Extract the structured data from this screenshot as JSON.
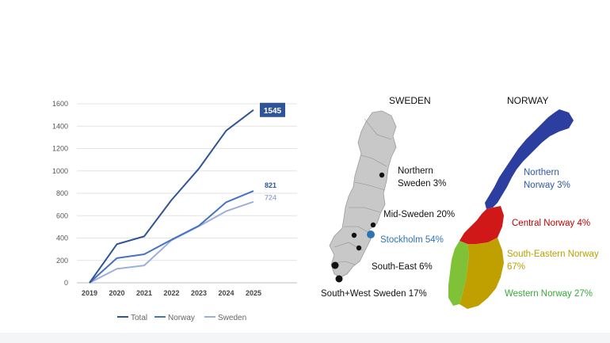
{
  "chart_data": {
    "type": "line",
    "x": [
      2019,
      2020,
      2021,
      2022,
      2023,
      2024,
      2025
    ],
    "ylim": [
      0,
      1600
    ],
    "yticks": [
      0,
      200,
      400,
      600,
      800,
      1000,
      1200,
      1400,
      1600
    ],
    "grid": true,
    "legend_position": "bottom",
    "series": [
      {
        "name": "Total",
        "color": "#2f5597",
        "values": [
          0,
          345,
          415,
          740,
          1020,
          1360,
          1545
        ]
      },
      {
        "name": "Norway",
        "color": "#4472c4",
        "values": [
          0,
          220,
          255,
          385,
          510,
          720,
          821
        ]
      },
      {
        "name": "Sweden",
        "color": "#9dafd9",
        "values": [
          0,
          125,
          155,
          380,
          505,
          640,
          724
        ]
      }
    ],
    "end_labels": [
      {
        "series": "Total",
        "text": "1545",
        "style": "boxed",
        "bg": "#2f5597",
        "fg": "#ffffff"
      },
      {
        "series": "Norway",
        "text": "821",
        "style": "plain",
        "fg": "#2f5597"
      },
      {
        "series": "Sweden",
        "text": "724",
        "style": "plain",
        "fg": "#9dafd9"
      }
    ]
  },
  "maps": {
    "sweden": {
      "title": "SWEDEN",
      "fill": "#c8c8c8",
      "regions": [
        {
          "id": "northern",
          "lines": [
            "Northern",
            "Sweden 3%"
          ],
          "color": "#111111"
        },
        {
          "id": "mid",
          "lines": [
            "Mid-Sweden 20%"
          ],
          "color": "#111111"
        },
        {
          "id": "stockholm",
          "lines": [
            "Stockholm 54%"
          ],
          "color": "#2e74b5"
        },
        {
          "id": "south-east",
          "lines": [
            "South-East 6%"
          ],
          "color": "#111111"
        },
        {
          "id": "south-west",
          "lines": [
            "South+West Sweden 17%"
          ],
          "color": "#111111"
        }
      ]
    },
    "norway": {
      "title": "NORWAY",
      "regions": [
        {
          "id": "northern",
          "lines": [
            "Northern",
            "Norway 3%"
          ],
          "color": "#2f55a4",
          "fill": "#2c3ea0"
        },
        {
          "id": "central",
          "lines": [
            "Central Norway 4%"
          ],
          "color": "#c00000",
          "fill": "#d01818"
        },
        {
          "id": "south-eastern",
          "lines": [
            "South-Eastern Norway",
            "67%"
          ],
          "color": "#b8a200",
          "fill": "#bfa000"
        },
        {
          "id": "western",
          "lines": [
            "Western Norway 27%"
          ],
          "color": "#3aa83a",
          "fill": "#7fc238"
        }
      ]
    }
  }
}
